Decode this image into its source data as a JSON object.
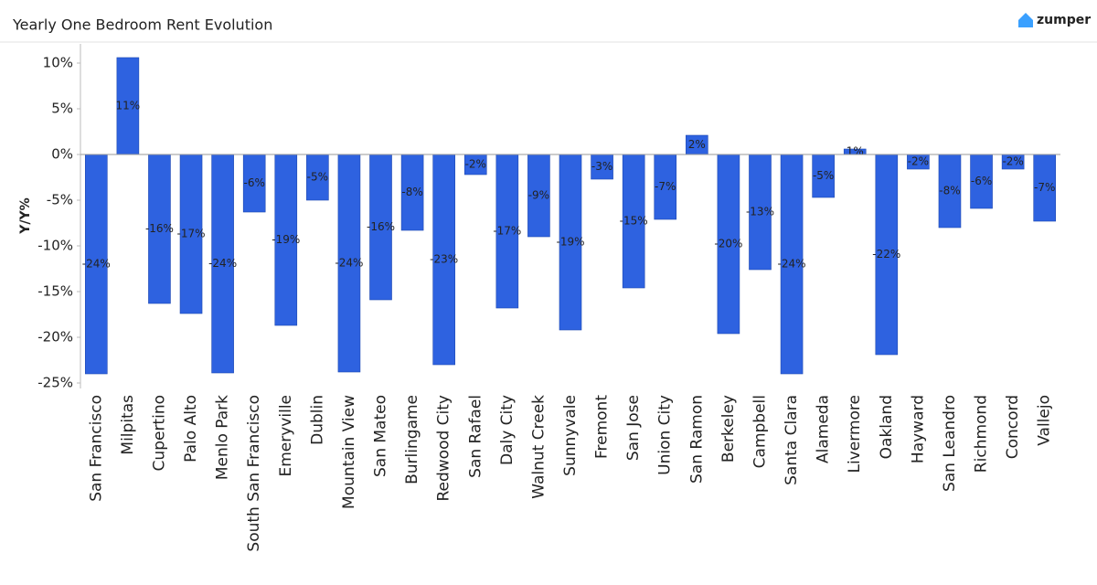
{
  "chart_data": {
    "type": "bar",
    "title": "Yearly One Bedroom Rent Evolution",
    "brand": "zumper",
    "y_label": "Y/Y%",
    "categories": [
      "San Francisco",
      "Milpitas",
      "Cupertino",
      "Palo Alto",
      "Menlo Park",
      "South San Francisco",
      "Emeryville",
      "Dublin",
      "Mountain View",
      "San Mateo",
      "Burlingame",
      "Redwood City",
      "San Rafael",
      "Daly City",
      "Walnut Creek",
      "Sunnyvale",
      "Fremont",
      "San Jose",
      "Union City",
      "San Ramon",
      "Berkeley",
      "Campbell",
      "Santa Clara",
      "Alameda",
      "Livermore",
      "Oakland",
      "Hayward",
      "San Leandro",
      "Richmond",
      "Concord",
      "Vallejo"
    ],
    "values": [
      -24.0,
      10.6,
      -16.3,
      -17.4,
      -23.9,
      -6.3,
      -18.7,
      -5.0,
      -23.8,
      -15.9,
      -8.3,
      -23.0,
      -2.2,
      -16.8,
      -9.0,
      -19.2,
      -2.7,
      -14.6,
      -7.1,
      2.1,
      -19.6,
      -12.6,
      -24.0,
      -4.7,
      0.6,
      -21.9,
      -1.6,
      -8.0,
      -5.9,
      -1.6,
      -7.3
    ],
    "value_labels": [
      "-24%",
      "11%",
      "-16%",
      "-17%",
      "-24%",
      "-6%",
      "-19%",
      "-5%",
      "-24%",
      "-16%",
      "-8%",
      "-23%",
      "-2%",
      "-17%",
      "-9%",
      "-19%",
      "-3%",
      "-15%",
      "-7%",
      "2%",
      "-20%",
      "-13%",
      "-24%",
      "-5%",
      "1%",
      "-22%",
      "-2%",
      "-8%",
      "-6%",
      "-2%",
      "-7%"
    ],
    "color": "#2e62e0",
    "ylim": [
      -25.6,
      12.1
    ],
    "yticks": [
      {
        "value": 10,
        "label": "10%"
      },
      {
        "value": 5,
        "label": "5%"
      },
      {
        "value": 0,
        "label": "0%"
      },
      {
        "value": -5,
        "label": "-5%"
      },
      {
        "value": -10,
        "label": "-10%"
      },
      {
        "value": -15,
        "label": "-15%"
      },
      {
        "value": -20,
        "label": "-20%"
      },
      {
        "value": -25,
        "label": "-25%"
      }
    ]
  }
}
